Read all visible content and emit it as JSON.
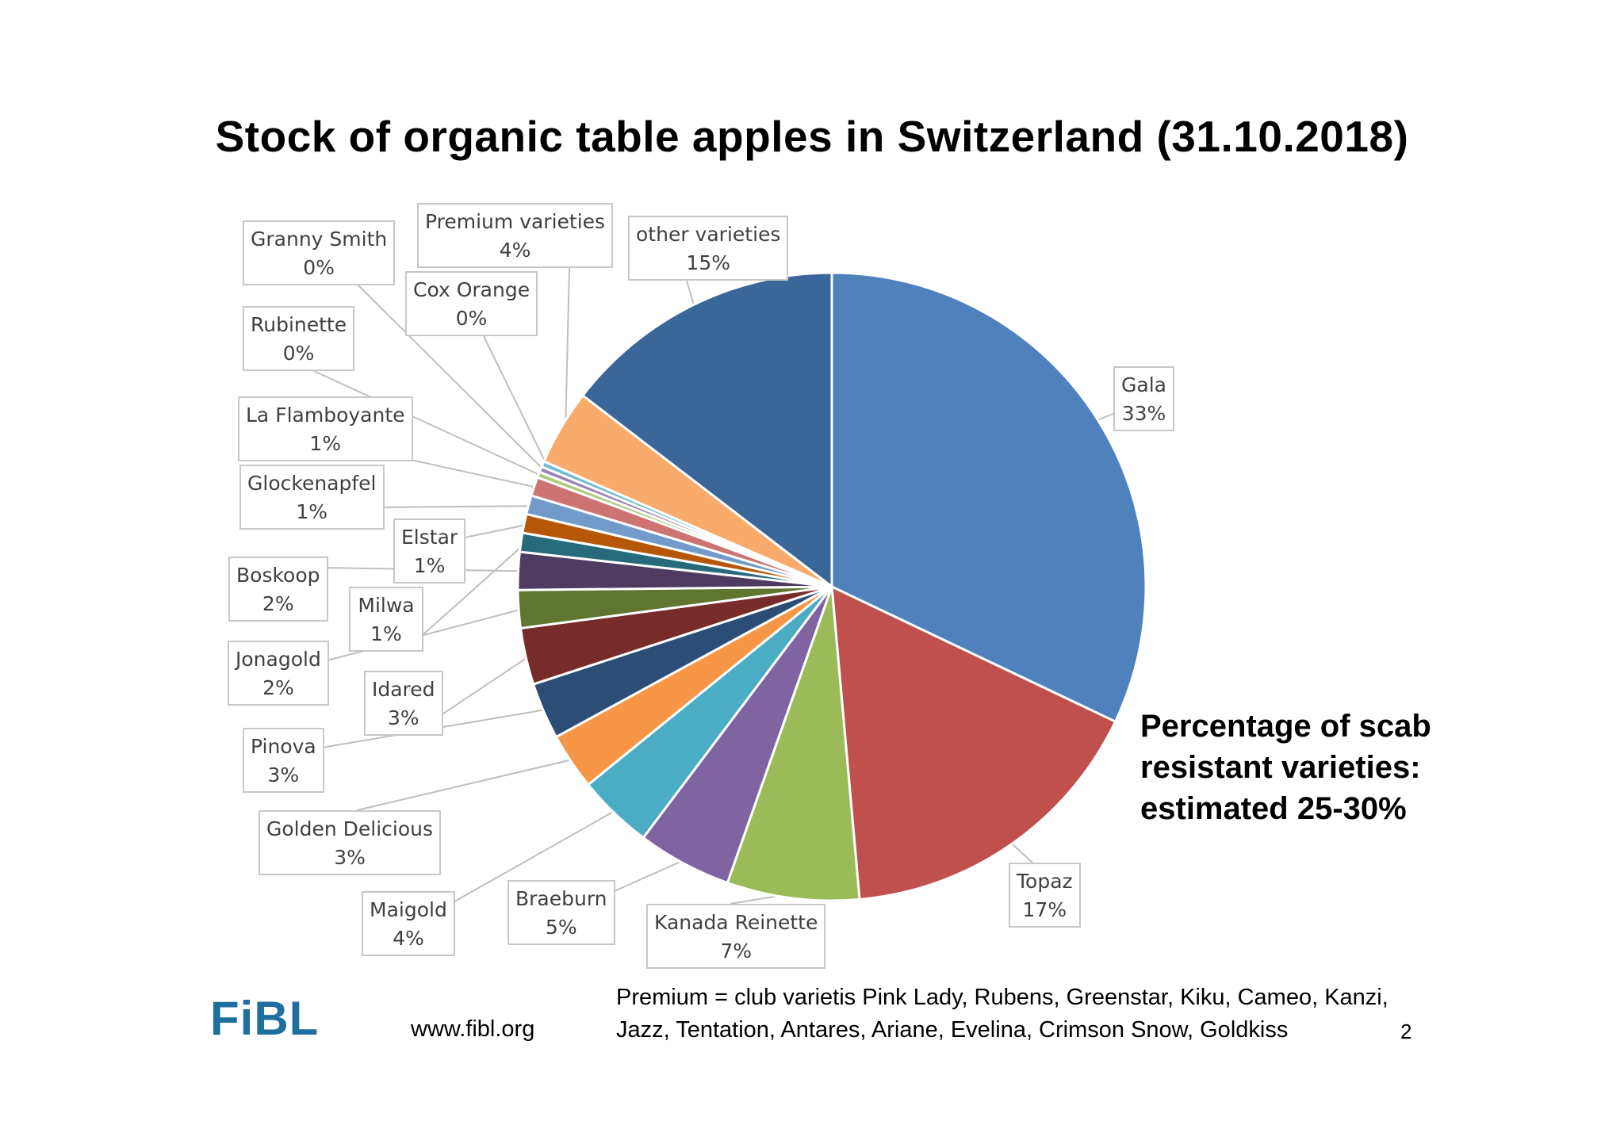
{
  "title": "Stock of organic table apples in Switzerland (31.10.2018)",
  "note": "Percentage of scab resistant varieties: estimated 25-30%",
  "logo": "FiBL",
  "url": "www.fibl.org",
  "premium_note": "Premium = club varietis Pink Lady, Rubens, Greenstar, Kiku, Cameo, Kanzi, Jazz, Tentation, Antares, Ariane, Evelina, Crimson Snow, Goldkiss",
  "page_number": "2",
  "chart_data": {
    "type": "pie",
    "start_angle_deg": 0,
    "direction": "clockwise",
    "slices": [
      {
        "label": "Gala",
        "value": 33,
        "value_label": "33%",
        "color": "#4f81bd"
      },
      {
        "label": "Topaz",
        "value": 17,
        "value_label": "17%",
        "color": "#c0504d"
      },
      {
        "label": "Kanada Reinette",
        "value": 7,
        "value_label": "7%",
        "color": "#9bbb59"
      },
      {
        "label": "Braeburn",
        "value": 5,
        "value_label": "5%",
        "color": "#8064a2"
      },
      {
        "label": "Maigold",
        "value": 4,
        "value_label": "4%",
        "color": "#4bacc6"
      },
      {
        "label": "Golden Delicious",
        "value": 3,
        "value_label": "3%",
        "color": "#f79646"
      },
      {
        "label": "Pinova",
        "value": 3,
        "value_label": "3%",
        "color": "#2c4d75"
      },
      {
        "label": "Idared",
        "value": 3,
        "value_label": "3%",
        "color": "#772c2a"
      },
      {
        "label": "Jonagold",
        "value": 2,
        "value_label": "2%",
        "color": "#5f7530"
      },
      {
        "label": "Boskoop",
        "value": 2,
        "value_label": "2%",
        "color": "#4d3b62"
      },
      {
        "label": "Milwa",
        "value": 1,
        "value_label": "1%",
        "color": "#276a7c"
      },
      {
        "label": "Elstar",
        "value": 1,
        "value_label": "1%",
        "color": "#b65708"
      },
      {
        "label": "Glockenapfel",
        "value": 1,
        "value_label": "1%",
        "color": "#729aca"
      },
      {
        "label": "La Flamboyante",
        "value": 1,
        "value_label": "1%",
        "color": "#cd7371"
      },
      {
        "label": "Rubinette",
        "value": 0.3,
        "value_label": "0%",
        "color": "#afc97a"
      },
      {
        "label": "Granny Smith",
        "value": 0.3,
        "value_label": "0%",
        "color": "#9983b5"
      },
      {
        "label": "Cox Orange",
        "value": 0.3,
        "value_label": "0%",
        "color": "#6fbdd1"
      },
      {
        "label": "Premium varieties",
        "value": 4,
        "value_label": "4%",
        "color": "#f9ab6b"
      },
      {
        "label": "other varieties",
        "value": 15,
        "value_label": "15%",
        "color": "#3a6699"
      }
    ]
  }
}
